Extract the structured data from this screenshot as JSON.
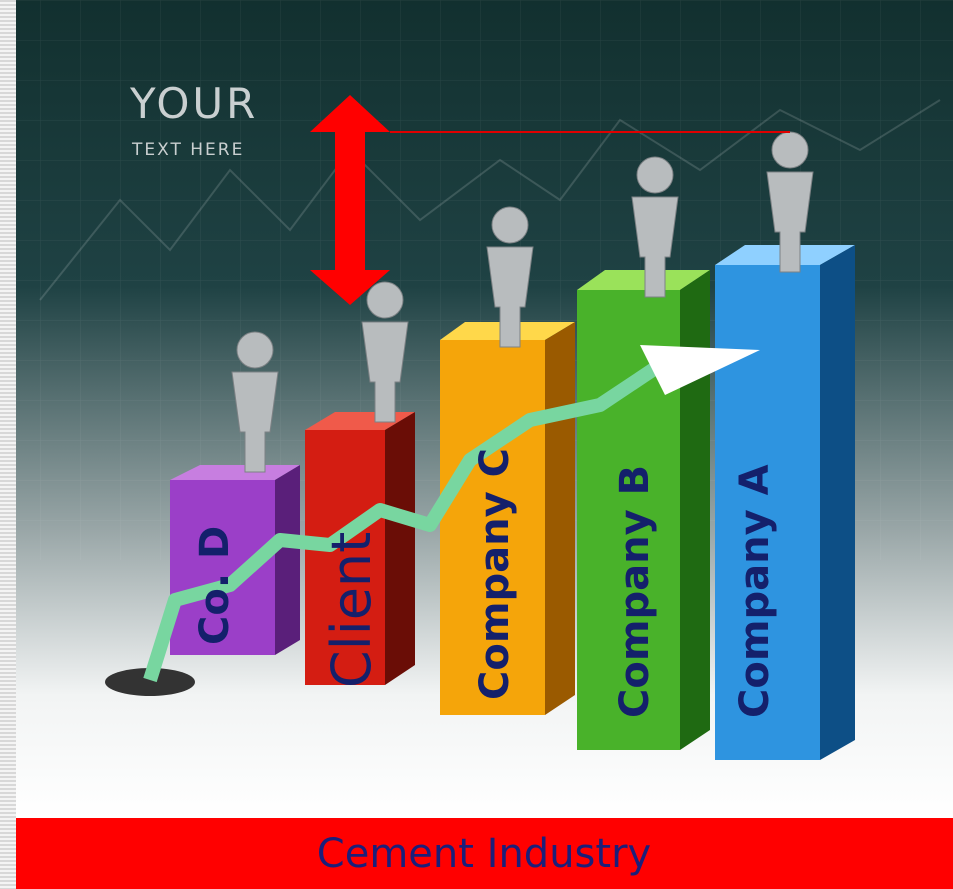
{
  "header": {
    "title": "YOUR",
    "subtitle": "TEXT HERE"
  },
  "bars": [
    {
      "label": "Co. D"
    },
    {
      "label": "Client"
    },
    {
      "label": "Company C"
    },
    {
      "label": "Company B"
    },
    {
      "label": "Company A"
    }
  ],
  "footer": {
    "title": "Cement Industry"
  }
}
